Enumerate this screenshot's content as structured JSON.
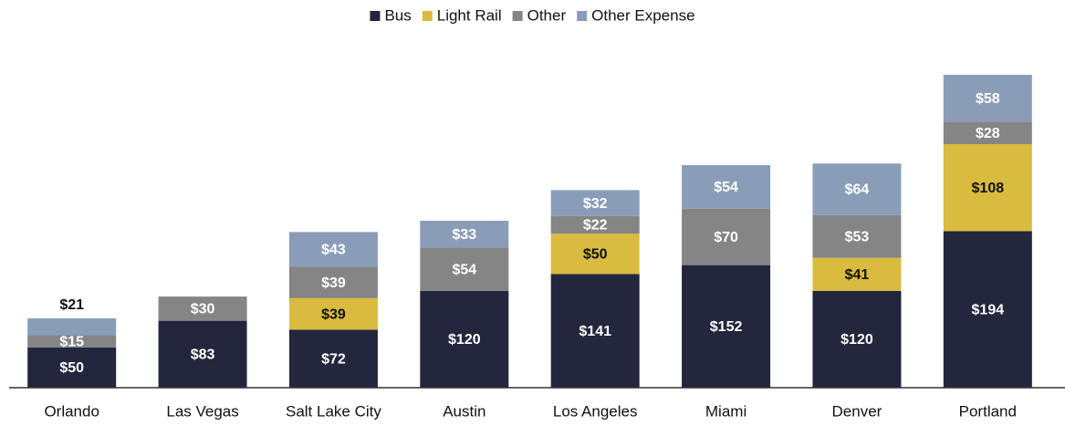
{
  "chart_data": {
    "type": "stacked_bar",
    "categories": [
      "Orlando",
      "Las Vegas",
      "Salt Lake City",
      "Austin",
      "Los Angeles",
      "Miami",
      "Denver",
      "Portland"
    ],
    "series": [
      {
        "name": "Bus",
        "color": "#23263d",
        "values": [
          50,
          83,
          72,
          120,
          141,
          152,
          120,
          194
        ],
        "value_labels": [
          "$50",
          "$83",
          "$72",
          "$120",
          "$141",
          "$152",
          "$120",
          "$194"
        ]
      },
      {
        "name": "Light Rail",
        "color": "#d9bc3f",
        "values": [
          null,
          null,
          39,
          null,
          50,
          null,
          41,
          108
        ],
        "value_labels": [
          null,
          null,
          "$39",
          null,
          "$50",
          null,
          "$41",
          "$108"
        ]
      },
      {
        "name": "Other",
        "color": "#858585",
        "values": [
          15,
          30,
          39,
          54,
          22,
          70,
          53,
          28
        ],
        "value_labels": [
          "$15",
          "$30",
          "$39",
          "$54",
          "$22",
          "$70",
          "$53",
          "$28"
        ]
      },
      {
        "name": "Other Expense",
        "color": "#8a9db8",
        "values": [
          21,
          null,
          43,
          33,
          32,
          54,
          64,
          58
        ],
        "value_labels": [
          "$21",
          null,
          "$43",
          "$33",
          "$32",
          "$54",
          "$64",
          "$58"
        ]
      }
    ],
    "legend": "top"
  }
}
